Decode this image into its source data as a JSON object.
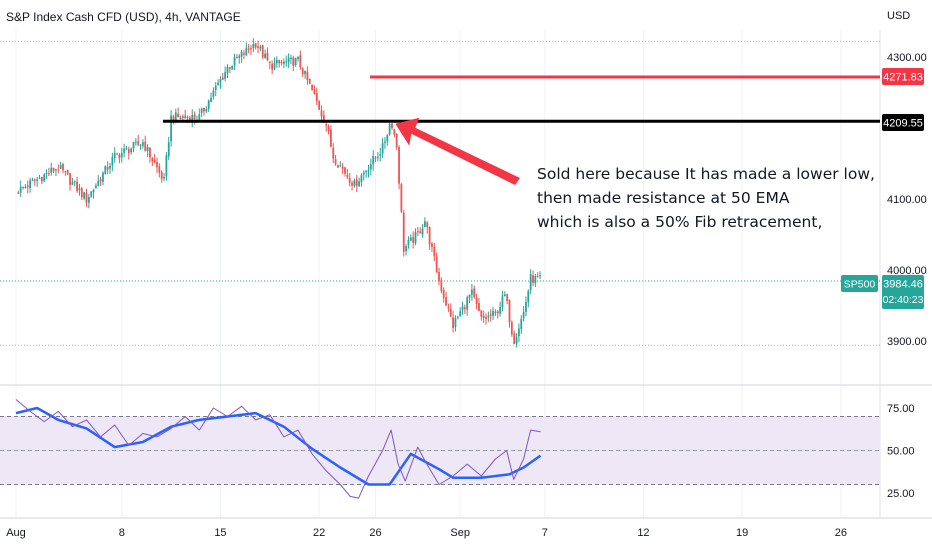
{
  "header": {
    "title": "S&P Index Cash CFD (USD), 4h, VANTAGE",
    "currency": "USD"
  },
  "colors": {
    "up": "#26a69a",
    "down": "#ef5350",
    "resistance_red": "#f23645",
    "black_line": "#000000",
    "ema_blue": "#2962ff",
    "rsi_purple": "#7e57c2",
    "rsi_band": "#ede7f6",
    "grid": "#f0f3fa"
  },
  "annotation": {
    "lines": [
      "Sold here because It has made a lower low,",
      "then made resistance at 50 EMA",
      "which is also a 50% Fib retracement,"
    ]
  },
  "badges": {
    "red_level": "4271.83",
    "black_level": "4209.55",
    "symbol": "SP500",
    "last_price": "3984.46",
    "countdown": "02:40:23"
  },
  "chart_data": [
    {
      "type": "candlestick",
      "title": "S&P Index Cash CFD (USD), 4h, VANTAGE",
      "y_unit": "USD",
      "y_ticks": [
        "4300.00",
        "4100.00",
        "4000.00",
        "3900.00"
      ],
      "x_ticks": [
        "Aug",
        "8",
        "15",
        "22",
        "26",
        "Sep",
        "7",
        "12",
        "19",
        "26"
      ],
      "ylim": [
        3870,
        4340
      ],
      "horizontal_levels": [
        {
          "label": "4271.83",
          "value": 4271.83,
          "color": "#f23645"
        },
        {
          "label": "4209.55",
          "value": 4209.55,
          "color": "#000000"
        },
        {
          "label": "dotted high",
          "value": 4322
        },
        {
          "label": "dotted low",
          "value": 3894
        },
        {
          "label": "last price",
          "value": 3984.46
        }
      ],
      "close_path": [
        {
          "t": 0.0,
          "v": 4110
        },
        {
          "t": 3.0,
          "v": 4145
        },
        {
          "t": 5.0,
          "v": 4100
        },
        {
          "t": 7.0,
          "v": 4160
        },
        {
          "t": 9.0,
          "v": 4180
        },
        {
          "t": 10.5,
          "v": 4125
        },
        {
          "t": 11.0,
          "v": 4215
        },
        {
          "t": 13.0,
          "v": 4215
        },
        {
          "t": 15.0,
          "v": 4285
        },
        {
          "t": 17.0,
          "v": 4320
        },
        {
          "t": 18.0,
          "v": 4288
        },
        {
          "t": 20.0,
          "v": 4295
        },
        {
          "t": 21.0,
          "v": 4252
        },
        {
          "t": 22.0,
          "v": 4205
        },
        {
          "t": 22.5,
          "v": 4160
        },
        {
          "t": 24.0,
          "v": 4120
        },
        {
          "t": 26.0,
          "v": 4172
        },
        {
          "t": 26.6,
          "v": 4212
        },
        {
          "t": 27.0,
          "v": 4175
        },
        {
          "t": 27.5,
          "v": 4030
        },
        {
          "t": 28.5,
          "v": 4050
        },
        {
          "t": 29.0,
          "v": 4070
        },
        {
          "t": 30.0,
          "v": 3985
        },
        {
          "t": 31.0,
          "v": 3922
        },
        {
          "t": 31.5,
          "v": 3940
        },
        {
          "t": 32.3,
          "v": 3968
        },
        {
          "t": 33.0,
          "v": 3930
        },
        {
          "t": 34.0,
          "v": 3938
        },
        {
          "t": 34.7,
          "v": 3965
        },
        {
          "t": 35.3,
          "v": 3900
        },
        {
          "t": 36.0,
          "v": 3940
        },
        {
          "t": 36.5,
          "v": 3988
        },
        {
          "t": 37.2,
          "v": 3986
        }
      ]
    },
    {
      "type": "line",
      "title": "RSI",
      "y_ticks": [
        "75.00",
        "50.00",
        "25.00"
      ],
      "ylim": [
        20,
        82
      ],
      "band": [
        30,
        70
      ],
      "midline": 50,
      "series": [
        {
          "color": "#2962ff",
          "points": [
            {
              "t": 0.0,
              "v": 72
            },
            {
              "t": 1.5,
              "v": 75
            },
            {
              "t": 3.0,
              "v": 68
            },
            {
              "t": 5.0,
              "v": 63
            },
            {
              "t": 7.0,
              "v": 52
            },
            {
              "t": 9.0,
              "v": 55
            },
            {
              "t": 11.0,
              "v": 64
            },
            {
              "t": 13.0,
              "v": 68
            },
            {
              "t": 15.0,
              "v": 70
            },
            {
              "t": 17.0,
              "v": 72
            },
            {
              "t": 19.0,
              "v": 64
            },
            {
              "t": 21.0,
              "v": 51
            },
            {
              "t": 23.0,
              "v": 40
            },
            {
              "t": 25.0,
              "v": 30
            },
            {
              "t": 26.5,
              "v": 30
            },
            {
              "t": 28.0,
              "v": 48
            },
            {
              "t": 30.0,
              "v": 39
            },
            {
              "t": 31.0,
              "v": 34
            },
            {
              "t": 33.0,
              "v": 34
            },
            {
              "t": 35.0,
              "v": 36
            },
            {
              "t": 36.0,
              "v": 40
            },
            {
              "t": 37.2,
              "v": 47
            }
          ]
        },
        {
          "color": "#7e57c2",
          "points": [
            {
              "t": 0.0,
              "v": 80
            },
            {
              "t": 1.0,
              "v": 73
            },
            {
              "t": 2.0,
              "v": 67
            },
            {
              "t": 3.0,
              "v": 73
            },
            {
              "t": 4.0,
              "v": 64
            },
            {
              "t": 5.0,
              "v": 68
            },
            {
              "t": 6.0,
              "v": 58
            },
            {
              "t": 7.0,
              "v": 65
            },
            {
              "t": 8.0,
              "v": 53
            },
            {
              "t": 9.0,
              "v": 60
            },
            {
              "t": 10.0,
              "v": 58
            },
            {
              "t": 11.0,
              "v": 63
            },
            {
              "t": 12.0,
              "v": 70
            },
            {
              "t": 13.0,
              "v": 62
            },
            {
              "t": 14.0,
              "v": 75
            },
            {
              "t": 15.0,
              "v": 70
            },
            {
              "t": 16.0,
              "v": 76
            },
            {
              "t": 17.0,
              "v": 68
            },
            {
              "t": 18.0,
              "v": 71
            },
            {
              "t": 19.0,
              "v": 58
            },
            {
              "t": 20.0,
              "v": 62
            },
            {
              "t": 21.0,
              "v": 48
            },
            {
              "t": 22.0,
              "v": 38
            },
            {
              "t": 23.0,
              "v": 30
            },
            {
              "t": 23.7,
              "v": 23
            },
            {
              "t": 24.3,
              "v": 22
            },
            {
              "t": 25.0,
              "v": 35
            },
            {
              "t": 26.0,
              "v": 50
            },
            {
              "t": 26.6,
              "v": 62
            },
            {
              "t": 27.1,
              "v": 42
            },
            {
              "t": 27.6,
              "v": 32
            },
            {
              "t": 28.5,
              "v": 52
            },
            {
              "t": 29.0,
              "v": 44
            },
            {
              "t": 30.0,
              "v": 30
            },
            {
              "t": 31.0,
              "v": 35
            },
            {
              "t": 32.0,
              "v": 42
            },
            {
              "t": 33.0,
              "v": 35
            },
            {
              "t": 34.0,
              "v": 45
            },
            {
              "t": 34.8,
              "v": 50
            },
            {
              "t": 35.3,
              "v": 33
            },
            {
              "t": 36.0,
              "v": 45
            },
            {
              "t": 36.5,
              "v": 62
            },
            {
              "t": 37.2,
              "v": 61
            }
          ]
        }
      ]
    }
  ]
}
